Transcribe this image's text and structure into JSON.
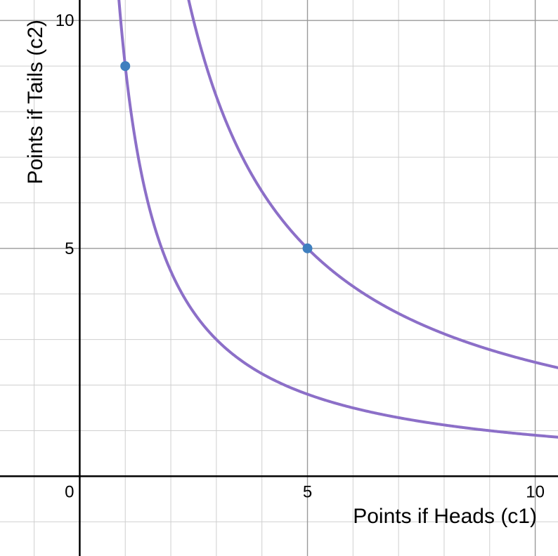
{
  "chart_data": {
    "type": "line",
    "xlabel": "Points if Heads (c1)",
    "ylabel": "Points if Tails (c2)",
    "xlim": [
      -1.75,
      10.5
    ],
    "ylim": [
      -1.75,
      10.45
    ],
    "grid": true,
    "x_ticks": [
      {
        "value": 5,
        "label": "5"
      },
      {
        "value": 10,
        "label": "10"
      }
    ],
    "y_ticks": [
      {
        "value": 5,
        "label": "5"
      },
      {
        "value": 10,
        "label": "10"
      }
    ],
    "origin_label": "0",
    "series": [
      {
        "equation": "c1 * c2 = 9",
        "constant": 9,
        "color": "#8c6fc8"
      },
      {
        "equation": "c1 * c2 = 25",
        "constant": 25,
        "color": "#8c6fc8"
      }
    ],
    "points": [
      {
        "x": 1,
        "y": 9,
        "color": "#3f7fbf"
      },
      {
        "x": 5,
        "y": 5,
        "color": "#3f7fbf"
      }
    ]
  }
}
